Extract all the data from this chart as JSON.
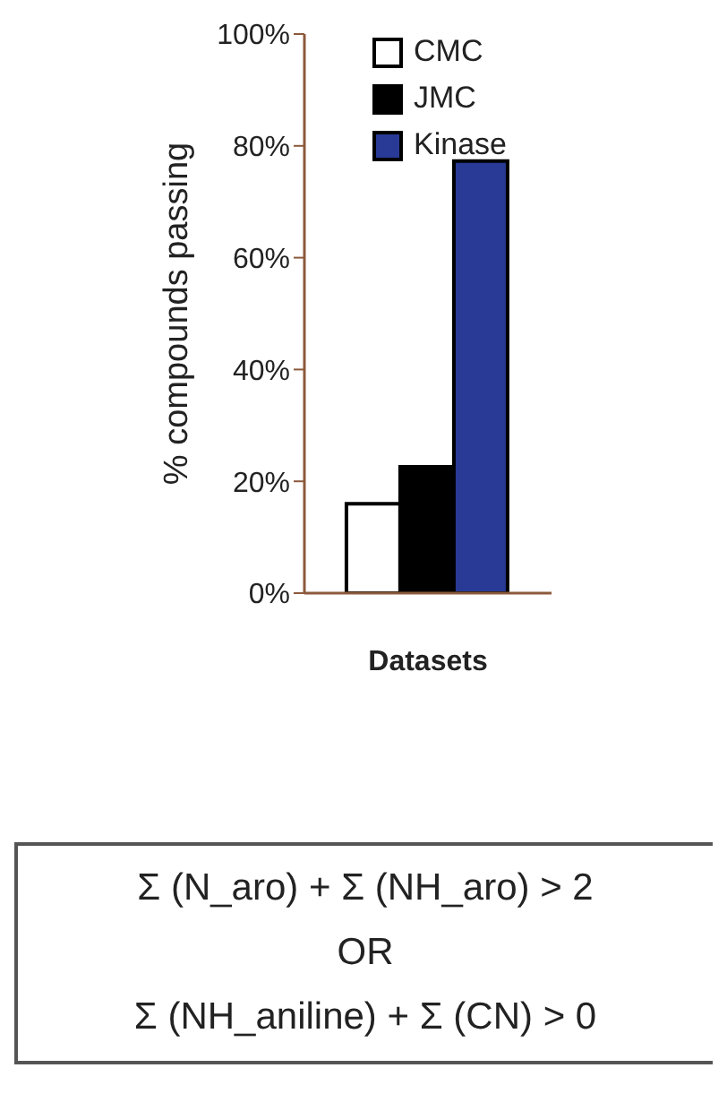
{
  "chart_data": {
    "type": "bar",
    "xlabel": "Datasets",
    "ylabel": "% compounds passing",
    "categories": [
      null
    ],
    "series": [
      {
        "name": "CMC",
        "color": "#ffffff",
        "values": [
          16
        ]
      },
      {
        "name": "JMC",
        "color": "#000000",
        "values": [
          22.6
        ]
      },
      {
        "name": "Kinase",
        "color": "#283a96",
        "values": [
          77.3
        ]
      }
    ],
    "ylim": [
      0,
      100
    ],
    "yticks": [
      {
        "value": 0,
        "label": "0%"
      },
      {
        "value": 20,
        "label": "20%"
      },
      {
        "value": 40,
        "label": "40%"
      },
      {
        "value": 60,
        "label": "60%"
      },
      {
        "value": 80,
        "label": "80%"
      },
      {
        "value": 100,
        "label": "100%"
      }
    ],
    "legend": "top right",
    "grid": false,
    "annotations": [
      "Σ (N_aro) + Σ (NH_aro) > 2",
      "OR",
      "Σ (NH_aniline) + Σ (CN) > 0"
    ]
  }
}
